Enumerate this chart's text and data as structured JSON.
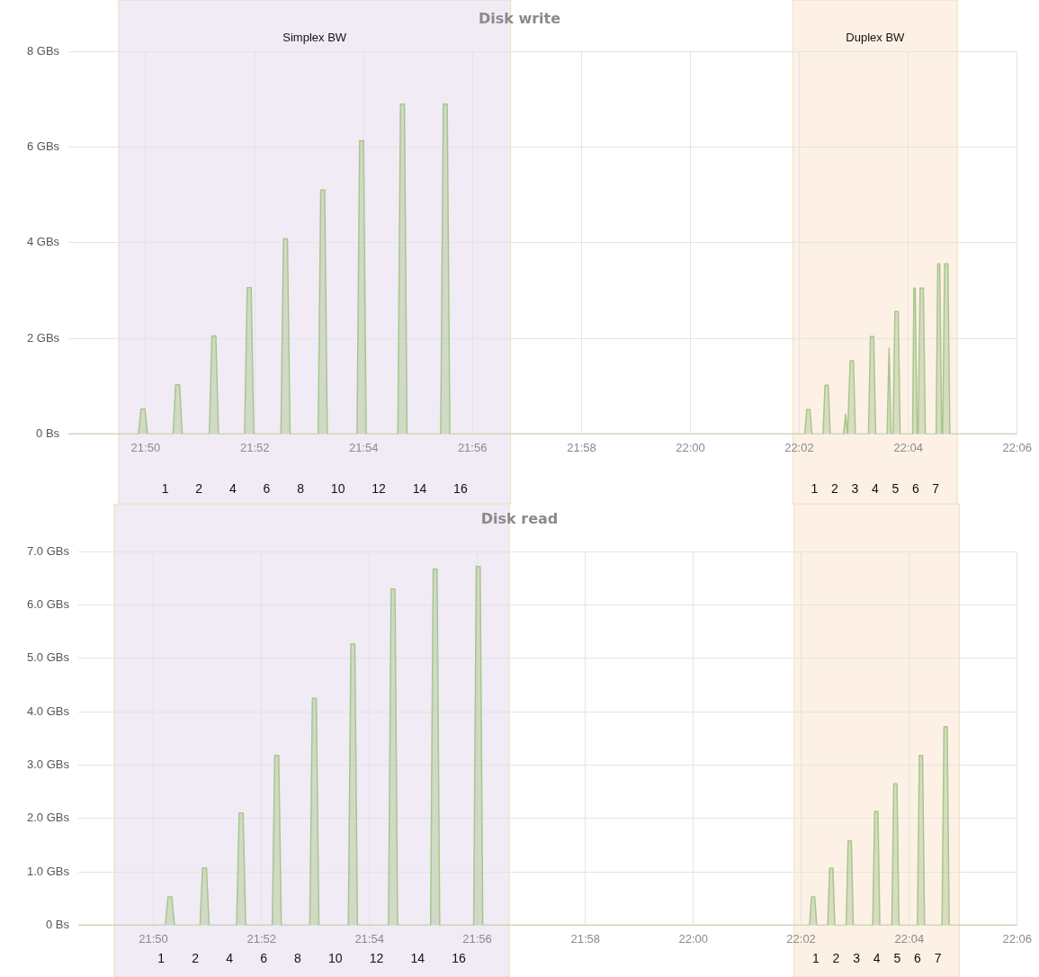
{
  "chart_data": [
    {
      "type": "area",
      "title": "Disk write",
      "xlim": [
        21.8097,
        22.1
      ],
      "ylim": [
        0,
        8
      ],
      "xticks": [
        {
          "value": 21.8333,
          "label": "21:50"
        },
        {
          "value": 21.8667,
          "label": "21:52"
        },
        {
          "value": 21.9,
          "label": "21:54"
        },
        {
          "value": 21.9333,
          "label": "21:56"
        },
        {
          "value": 21.9667,
          "label": "21:58"
        },
        {
          "value": 22,
          "label": "22:00"
        },
        {
          "value": 22.0333,
          "label": "22:02"
        },
        {
          "value": 22.0667,
          "label": "22:04"
        },
        {
          "value": 22.1,
          "label": "22:06"
        }
      ],
      "yticks": [
        {
          "value": 0,
          "label": "0 Bs"
        },
        {
          "value": 2,
          "label": "2 GBs"
        },
        {
          "value": 4,
          "label": "4 GBs"
        },
        {
          "value": 6,
          "label": "6 GBs"
        },
        {
          "value": 8,
          "label": "8 GBs"
        }
      ],
      "grid": true,
      "legend": false,
      "series": [
        {
          "color": "#a9c58f",
          "x": [
            21.8097,
            21.8311,
            21.8319,
            21.8331,
            21.8339,
            21.8417,
            21.8425,
            21.8437,
            21.8445,
            21.8528,
            21.8536,
            21.8548,
            21.8556,
            21.8636,
            21.8644,
            21.8656,
            21.8664,
            21.8747,
            21.8755,
            21.8767,
            21.8775,
            21.8861,
            21.8869,
            21.8881,
            21.8889,
            21.898,
            21.8988,
            21.9,
            21.9008,
            21.9105,
            21.9113,
            21.9125,
            21.9133,
            21.9236,
            21.9244,
            21.9256,
            21.9264,
            22.035,
            22.0356,
            22.0366,
            22.0372,
            22.0406,
            22.0412,
            22.0422,
            22.0428,
            22.0469,
            22.0475,
            22.0481,
            22.0483,
            22.0489,
            22.0499,
            22.0505,
            22.0545,
            22.0551,
            22.0561,
            22.0567,
            22.0602,
            22.0608,
            22.0614,
            22.062,
            22.0626,
            22.0636,
            22.0642,
            22.068,
            22.0684,
            22.0688,
            22.0694,
            22.0697,
            22.0703,
            22.0713,
            22.0719,
            22.0752,
            22.0757,
            22.0763,
            22.0769,
            22.0772,
            22.0778,
            22.0788,
            22.0794,
            22.1
          ],
          "values": [
            0,
            0,
            0.52,
            0.52,
            0,
            0,
            1.03,
            1.03,
            0,
            0,
            2.05,
            2.05,
            0,
            0,
            3.06,
            3.06,
            0,
            0,
            4.08,
            4.08,
            0,
            0,
            5.1,
            5.1,
            0,
            0,
            6.13,
            6.13,
            0,
            0,
            6.9,
            6.9,
            0,
            0,
            6.9,
            6.9,
            0,
            0,
            0.51,
            0.51,
            0,
            0,
            1.02,
            1.02,
            0,
            0,
            0.41,
            0,
            0,
            1.53,
            1.53,
            0,
            0,
            2.04,
            2.04,
            0,
            0,
            1.8,
            0,
            0,
            2.56,
            2.56,
            0,
            0,
            3.05,
            3.05,
            0,
            0,
            3.05,
            3.05,
            0,
            0,
            3.56,
            3.56,
            0,
            0,
            3.56,
            3.56,
            0,
            0
          ]
        }
      ],
      "bands": [
        {
          "axis": "x",
          "from": 21.825,
          "to": 21.945,
          "label": "Simplex BW",
          "color": "#f0ebf4"
        },
        {
          "axis": "x",
          "from": 22.0314,
          "to": 22.0817,
          "label": "Duplex BW",
          "color": "#fdf1e5"
        }
      ],
      "annotations": [
        "1 2 4 6 8 10 12 14 16",
        "1 2 3 4 5 6 7"
      ]
    },
    {
      "type": "area",
      "title": "Disk read",
      "xlim": [
        21.8101,
        22.1
      ],
      "ylim": [
        0,
        7
      ],
      "xticks": [
        {
          "value": 21.8333,
          "label": "21:50"
        },
        {
          "value": 21.8667,
          "label": "21:52"
        },
        {
          "value": 21.9,
          "label": "21:54"
        },
        {
          "value": 21.9333,
          "label": "21:56"
        },
        {
          "value": 21.9667,
          "label": "21:58"
        },
        {
          "value": 22,
          "label": "22:00"
        },
        {
          "value": 22.0333,
          "label": "22:02"
        },
        {
          "value": 22.0667,
          "label": "22:04"
        },
        {
          "value": 22.1,
          "label": "22:06"
        }
      ],
      "yticks": [
        {
          "value": 0,
          "label": "0 Bs"
        },
        {
          "value": 1,
          "label": "1.0 GBs"
        },
        {
          "value": 2,
          "label": "2.0 GBs"
        },
        {
          "value": 3,
          "label": "3.0 GBs"
        },
        {
          "value": 4,
          "label": "4.0 GBs"
        },
        {
          "value": 5,
          "label": "5.0 GBs"
        },
        {
          "value": 6,
          "label": "6.0 GBs"
        },
        {
          "value": 7,
          "label": "7.0 GBs"
        }
      ],
      "grid": true,
      "legend": false,
      "series": [
        {
          "color": "#a9c58f",
          "x": [
            21.8101,
            21.837,
            21.8378,
            21.839,
            21.8398,
            21.8477,
            21.8485,
            21.8497,
            21.8505,
            21.859,
            21.8598,
            21.861,
            21.8618,
            21.87,
            21.8708,
            21.872,
            21.8728,
            21.8816,
            21.8824,
            21.8836,
            21.8844,
            21.8935,
            21.8943,
            21.8955,
            21.8963,
            21.9059,
            21.9067,
            21.9079,
            21.9087,
            21.9189,
            21.9197,
            21.9209,
            21.9217,
            21.9322,
            21.933,
            21.9342,
            21.935,
            22.0359,
            22.0365,
            22.0375,
            22.0381,
            22.0415,
            22.0421,
            22.0431,
            22.0437,
            22.0472,
            22.0478,
            22.0488,
            22.0494,
            22.0554,
            22.056,
            22.057,
            22.0576,
            22.0613,
            22.0619,
            22.0629,
            22.0635,
            22.0692,
            22.0698,
            22.0708,
            22.0714,
            22.0768,
            22.0774,
            22.0784,
            22.079,
            22.1
          ],
          "values": [
            0,
            0,
            0.53,
            0.53,
            0,
            0,
            1.07,
            1.07,
            0,
            0,
            2.1,
            2.1,
            0,
            0,
            3.18,
            3.18,
            0,
            0,
            4.25,
            4.25,
            0,
            0,
            5.27,
            5.27,
            0,
            0,
            6.3,
            6.3,
            0,
            0,
            6.67,
            6.67,
            0,
            0,
            6.72,
            6.72,
            0,
            0,
            0.53,
            0.53,
            0,
            0,
            1.07,
            1.07,
            0,
            0,
            1.58,
            1.58,
            0,
            0,
            2.13,
            2.13,
            0,
            0,
            2.65,
            2.65,
            0,
            0,
            3.18,
            3.18,
            0,
            0,
            3.72,
            3.72,
            0,
            0
          ]
        }
      ],
      "bands": [
        {
          "axis": "x",
          "from": 21.8212,
          "to": 21.9432,
          "color": "#f0ebf4"
        },
        {
          "axis": "x",
          "from": 22.0311,
          "to": 22.0822,
          "color": "#fdf1e5"
        }
      ],
      "annotations": [
        "1 2 4 6 8 10 12 14 16",
        "1 2 3 4 5 6 7"
      ]
    }
  ]
}
